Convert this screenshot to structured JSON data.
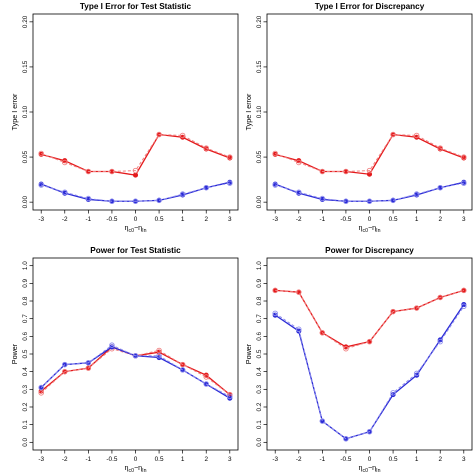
{
  "colors": {
    "red": "#e41a1c",
    "red_light": "#f08080",
    "blue": "#2b2bd6",
    "blue_light": "#8f8fee",
    "axis": "#000000"
  },
  "chart_data": [
    {
      "type": "line",
      "title": "Type I Error for Test Statistic",
      "ylabel": "Type I error",
      "xlabel_parts": [
        "η",
        "c0",
        "−η",
        "In"
      ],
      "x": [
        -3,
        -2,
        -1,
        -0.5,
        0,
        0.5,
        1,
        2,
        3
      ],
      "x_tick_labels": [
        "-3",
        "-2",
        "-1",
        "-0.5",
        "0",
        "0.5",
        "1",
        "2",
        "3"
      ],
      "ylim": [
        0,
        0.2
      ],
      "y_ticks": [
        0.0,
        0.05,
        0.1,
        0.15,
        0.2
      ],
      "y_tick_labels": [
        "0.00",
        "0.05",
        "0.10",
        "0.15",
        "0.20"
      ],
      "series": [
        {
          "color": "red",
          "style": "solid",
          "values": [
            0.053,
            0.046,
            0.034,
            0.034,
            0.03,
            0.075,
            0.072,
            0.059,
            0.049
          ]
        },
        {
          "color": "red_light",
          "style": "dashed",
          "values": [
            0.054,
            0.044,
            0.034,
            0.034,
            0.035,
            0.075,
            0.074,
            0.06,
            0.05
          ]
        },
        {
          "color": "blue",
          "style": "solid",
          "values": [
            0.02,
            0.01,
            0.003,
            0.001,
            0.001,
            0.002,
            0.008,
            0.016,
            0.022
          ]
        },
        {
          "color": "blue_light",
          "style": "dashed",
          "values": [
            0.019,
            0.011,
            0.004,
            0.001,
            0.001,
            0.002,
            0.009,
            0.016,
            0.021
          ]
        }
      ]
    },
    {
      "type": "line",
      "title": "Type I Error for Discrepancy",
      "ylabel": "Type I error",
      "xlabel_parts": [
        "η",
        "c0",
        "−η",
        "In"
      ],
      "x": [
        -3,
        -2,
        -1,
        -0.5,
        0,
        0.5,
        1,
        2,
        3
      ],
      "x_tick_labels": [
        "-3",
        "-2",
        "-1",
        "-0.5",
        "0",
        "0.5",
        "1",
        "2",
        "3"
      ],
      "ylim": [
        0,
        0.2
      ],
      "y_ticks": [
        0.0,
        0.05,
        0.1,
        0.15,
        0.2
      ],
      "y_tick_labels": [
        "0.00",
        "0.05",
        "0.10",
        "0.15",
        "0.20"
      ],
      "series": [
        {
          "color": "red",
          "style": "solid",
          "values": [
            0.053,
            0.046,
            0.034,
            0.034,
            0.031,
            0.075,
            0.072,
            0.059,
            0.049
          ]
        },
        {
          "color": "red_light",
          "style": "dashed",
          "values": [
            0.054,
            0.044,
            0.034,
            0.034,
            0.035,
            0.075,
            0.074,
            0.06,
            0.05
          ]
        },
        {
          "color": "blue",
          "style": "solid",
          "values": [
            0.02,
            0.01,
            0.003,
            0.001,
            0.001,
            0.002,
            0.008,
            0.016,
            0.022
          ]
        },
        {
          "color": "blue_light",
          "style": "dashed",
          "values": [
            0.019,
            0.011,
            0.004,
            0.001,
            0.001,
            0.002,
            0.009,
            0.016,
            0.021
          ]
        }
      ]
    },
    {
      "type": "line",
      "title": "Power for Test Statistic",
      "ylabel": "Power",
      "xlabel_parts": [
        "η",
        "c0",
        "−η",
        "In"
      ],
      "x": [
        -3,
        -2,
        -1,
        -0.5,
        0,
        0.5,
        1,
        2,
        3
      ],
      "x_tick_labels": [
        "-3",
        "-2",
        "-1",
        "-0.5",
        "0",
        "0.5",
        "1",
        "2",
        "3"
      ],
      "ylim": [
        0,
        1
      ],
      "y_ticks": [
        0.0,
        0.1,
        0.2,
        0.3,
        0.4,
        0.5,
        0.6,
        0.7,
        0.8,
        0.9,
        1.0
      ],
      "y_tick_labels": [
        "0.0",
        "0.1",
        "0.2",
        "0.3",
        "0.4",
        "0.5",
        "0.6",
        "0.7",
        "0.8",
        "0.9",
        "1.0"
      ],
      "series": [
        {
          "color": "red",
          "style": "solid",
          "values": [
            0.29,
            0.4,
            0.42,
            0.54,
            0.49,
            0.51,
            0.44,
            0.38,
            0.27
          ]
        },
        {
          "color": "red_light",
          "style": "dashed",
          "values": [
            0.28,
            0.4,
            0.42,
            0.53,
            0.49,
            0.52,
            0.44,
            0.37,
            0.27
          ]
        },
        {
          "color": "blue",
          "style": "solid",
          "values": [
            0.31,
            0.44,
            0.45,
            0.54,
            0.49,
            0.48,
            0.41,
            0.33,
            0.25
          ]
        },
        {
          "color": "blue_light",
          "style": "dashed",
          "values": [
            0.31,
            0.44,
            0.45,
            0.55,
            0.49,
            0.49,
            0.41,
            0.33,
            0.26
          ]
        }
      ]
    },
    {
      "type": "line",
      "title": "Power for Discrepancy",
      "ylabel": "Power",
      "xlabel_parts": [
        "η",
        "c0",
        "−η",
        "In"
      ],
      "x": [
        -3,
        -2,
        -1,
        -0.5,
        0,
        0.5,
        1,
        2,
        3
      ],
      "x_tick_labels": [
        "-3",
        "-2",
        "-1",
        "-0.5",
        "0",
        "0.5",
        "1",
        "2",
        "3"
      ],
      "ylim": [
        0,
        1
      ],
      "y_ticks": [
        0.0,
        0.1,
        0.2,
        0.3,
        0.4,
        0.5,
        0.6,
        0.7,
        0.8,
        0.9,
        1.0
      ],
      "y_tick_labels": [
        "0.0",
        "0.1",
        "0.2",
        "0.3",
        "0.4",
        "0.5",
        "0.6",
        "0.7",
        "0.8",
        "0.9",
        "1.0"
      ],
      "series": [
        {
          "color": "red",
          "style": "solid",
          "values": [
            0.86,
            0.85,
            0.62,
            0.54,
            0.57,
            0.74,
            0.76,
            0.82,
            0.86
          ]
        },
        {
          "color": "red_light",
          "style": "dashed",
          "values": [
            0.86,
            0.85,
            0.62,
            0.53,
            0.57,
            0.74,
            0.76,
            0.82,
            0.86
          ]
        },
        {
          "color": "blue",
          "style": "solid",
          "values": [
            0.72,
            0.63,
            0.12,
            0.02,
            0.06,
            0.27,
            0.38,
            0.58,
            0.78
          ]
        },
        {
          "color": "blue_light",
          "style": "dashed",
          "values": [
            0.73,
            0.64,
            0.12,
            0.02,
            0.06,
            0.28,
            0.39,
            0.57,
            0.77
          ]
        }
      ]
    }
  ]
}
